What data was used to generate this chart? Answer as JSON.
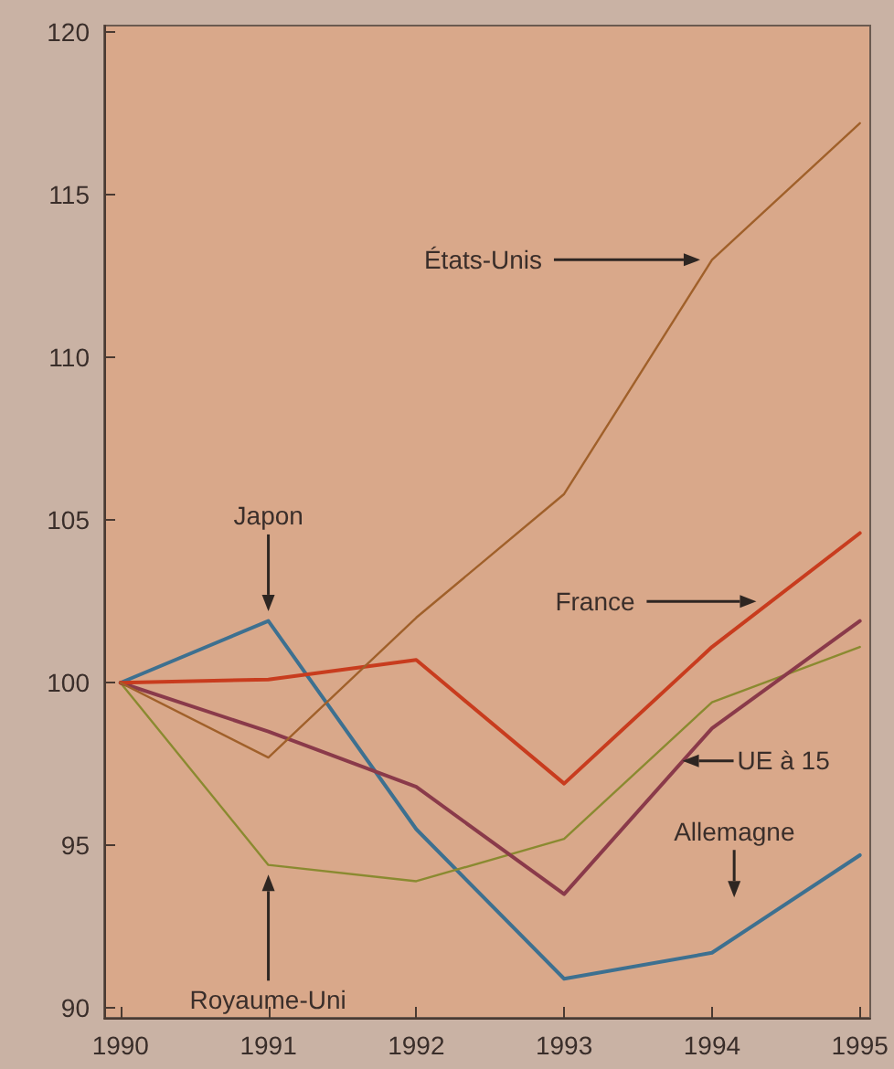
{
  "chart_data": {
    "type": "line",
    "x": [
      1990,
      1991,
      1992,
      1993,
      1994,
      1995
    ],
    "xlim": [
      1989.89,
      1995.07
    ],
    "xticks": [
      1990,
      1991,
      1992,
      1993,
      1994,
      1995
    ],
    "ylim": [
      89.7,
      120.2
    ],
    "yticks": [
      90,
      95,
      100,
      105,
      110,
      115,
      120
    ],
    "series": [
      {
        "color": "#a0602a",
        "values": [
          100,
          97.7,
          102,
          105.8,
          113,
          117.2
        ]
      },
      {
        "color": "#c83c1e",
        "values": [
          100,
          100.1,
          100.7,
          96.9,
          101.1,
          104.6
        ]
      },
      {
        "color": "#8a3a4a",
        "values": [
          100,
          98.5,
          96.8,
          93.5,
          98.6,
          101.9
        ]
      },
      {
        "color": "#8a8a30",
        "values": [
          100,
          94.4,
          93.9,
          95.2,
          99.4,
          101.1
        ]
      },
      {
        "color": "#3d7090",
        "values": [
          100,
          101.9,
          95.5,
          90.9,
          91.7,
          94.7
        ]
      }
    ],
    "annotations": [
      "États-Unis",
      "France",
      "UE à 15",
      "Japon",
      "Royaume-Uni",
      "Allemagne"
    ],
    "grid": false,
    "marker": "none",
    "line_style": "solid"
  }
}
